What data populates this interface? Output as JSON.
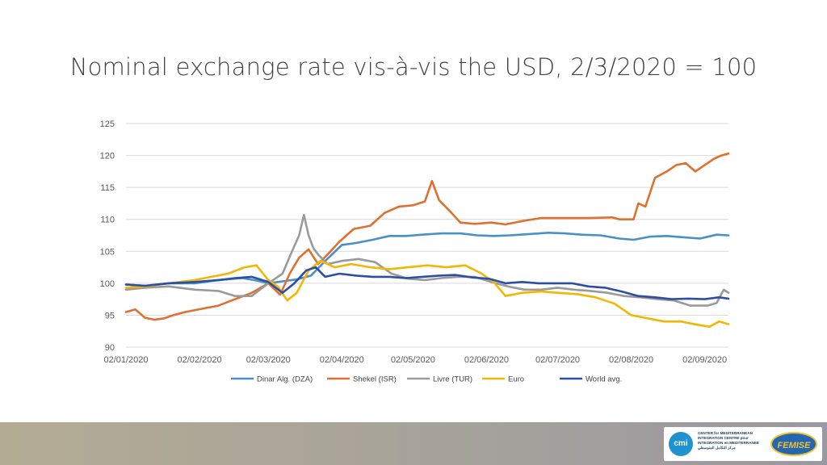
{
  "slide": {
    "title": "Nominal exchange rate vis-à-vis the USD, 2/3/2020 = 100"
  },
  "logos": {
    "cmi_badge": "cmi",
    "cmi_lines": [
      "CENTER for MEDITERRANEAN",
      "INTEGRATION CENTRE pour",
      "INTEGRATION en MEDITERRANEE",
      "مركز التكامل المتوسطي"
    ],
    "femise": "FEMISE"
  },
  "colors": {
    "background": "#ffffff",
    "grid": "#d9d9d9",
    "footer_band": "#a9a49a"
  },
  "chart_data": {
    "type": "line",
    "title": "",
    "xlabel": "",
    "ylabel": "",
    "ylim": [
      90,
      125
    ],
    "xlim": [
      "2020-01-02",
      "2020-09-12"
    ],
    "grid": true,
    "legend_position": "bottom",
    "y_ticks": [
      90,
      95,
      100,
      105,
      110,
      115,
      120,
      125
    ],
    "x_ticks": [
      "02/01/2020",
      "02/02/2020",
      "02/03/2020",
      "02/04/2020",
      "02/05/2020",
      "02/06/2020",
      "02/07/2020",
      "02/08/2020",
      "02/09/2020"
    ],
    "series": [
      {
        "name": "Dinar Alg. (DZA)",
        "color": "#4a90c8",
        "x": [
          "2020-01-02",
          "2020-01-10",
          "2020-01-20",
          "2020-01-31",
          "2020-02-10",
          "2020-02-20",
          "2020-02-25",
          "2020-03-02",
          "2020-03-08",
          "2020-03-14",
          "2020-03-20",
          "2020-03-26",
          "2020-04-02",
          "2020-04-08",
          "2020-04-15",
          "2020-04-22",
          "2020-04-29",
          "2020-05-06",
          "2020-05-14",
          "2020-05-22",
          "2020-05-29",
          "2020-06-05",
          "2020-06-12",
          "2020-06-20",
          "2020-06-28",
          "2020-07-05",
          "2020-07-12",
          "2020-07-20",
          "2020-07-28",
          "2020-08-03",
          "2020-08-10",
          "2020-08-17",
          "2020-08-24",
          "2020-08-31",
          "2020-09-07",
          "2020-09-12"
        ],
        "values": [
          99.8,
          99.6,
          100.0,
          100.0,
          100.5,
          100.8,
          100.5,
          100.0,
          100.3,
          100.6,
          101.2,
          103.5,
          106.0,
          106.3,
          106.8,
          107.4,
          107.4,
          107.6,
          107.8,
          107.8,
          107.5,
          107.4,
          107.5,
          107.7,
          107.9,
          107.8,
          107.6,
          107.5,
          107.0,
          106.8,
          107.3,
          107.4,
          107.2,
          107.0,
          107.6,
          107.5
        ]
      },
      {
        "name": "Shekel (ISR)",
        "color": "#e07031",
        "x": [
          "2020-01-02",
          "2020-01-06",
          "2020-01-10",
          "2020-01-14",
          "2020-01-18",
          "2020-01-22",
          "2020-01-27",
          "2020-02-03",
          "2020-02-10",
          "2020-02-17",
          "2020-02-24",
          "2020-03-02",
          "2020-03-07",
          "2020-03-11",
          "2020-03-15",
          "2020-03-19",
          "2020-03-23",
          "2020-03-27",
          "2020-04-01",
          "2020-04-07",
          "2020-04-14",
          "2020-04-20",
          "2020-04-26",
          "2020-05-02",
          "2020-05-07",
          "2020-05-10",
          "2020-05-13",
          "2020-05-17",
          "2020-05-22",
          "2020-05-28",
          "2020-06-04",
          "2020-06-10",
          "2020-06-18",
          "2020-06-25",
          "2020-07-05",
          "2020-07-15",
          "2020-07-25",
          "2020-07-28",
          "2020-07-31",
          "2020-08-03",
          "2020-08-05",
          "2020-08-08",
          "2020-08-12",
          "2020-08-17",
          "2020-08-21",
          "2020-08-25",
          "2020-08-29",
          "2020-09-02",
          "2020-09-06",
          "2020-09-09",
          "2020-09-12"
        ],
        "values": [
          95.5,
          95.9,
          94.6,
          94.3,
          94.5,
          95.0,
          95.5,
          96.0,
          96.5,
          97.5,
          98.5,
          100.0,
          98.2,
          101.5,
          104.0,
          105.3,
          103.0,
          104.5,
          106.5,
          108.5,
          109.0,
          111.0,
          112.0,
          112.2,
          112.8,
          116.0,
          113.0,
          111.5,
          109.5,
          109.3,
          109.5,
          109.2,
          109.8,
          110.2,
          110.2,
          110.2,
          110.3,
          110.0,
          110.0,
          110.0,
          112.5,
          112.0,
          116.5,
          117.5,
          118.5,
          118.8,
          117.5,
          118.5,
          119.5,
          120.0,
          120.3
        ]
      },
      {
        "name": "Livre (TUR)",
        "color": "#9a9a9a",
        "x": [
          "2020-01-02",
          "2020-01-10",
          "2020-01-20",
          "2020-01-31",
          "2020-02-10",
          "2020-02-17",
          "2020-02-24",
          "2020-03-02",
          "2020-03-08",
          "2020-03-12",
          "2020-03-15",
          "2020-03-17",
          "2020-03-19",
          "2020-03-21",
          "2020-03-23",
          "2020-03-27",
          "2020-04-02",
          "2020-04-09",
          "2020-04-16",
          "2020-04-23",
          "2020-04-30",
          "2020-05-07",
          "2020-05-14",
          "2020-05-21",
          "2020-05-28",
          "2020-06-04",
          "2020-06-11",
          "2020-06-18",
          "2020-06-25",
          "2020-07-02",
          "2020-07-09",
          "2020-07-16",
          "2020-07-23",
          "2020-07-30",
          "2020-08-06",
          "2020-08-13",
          "2020-08-20",
          "2020-08-27",
          "2020-09-03",
          "2020-09-07",
          "2020-09-10",
          "2020-09-12"
        ],
        "values": [
          99.0,
          99.3,
          99.5,
          99.0,
          98.8,
          98.0,
          98.0,
          100.0,
          101.5,
          105.0,
          107.5,
          110.7,
          107.5,
          105.5,
          104.5,
          103.0,
          103.5,
          103.8,
          103.3,
          101.5,
          100.7,
          100.5,
          100.8,
          101.0,
          101.0,
          100.2,
          99.5,
          99.0,
          99.0,
          99.3,
          99.0,
          98.8,
          98.5,
          98.0,
          97.8,
          97.5,
          97.3,
          96.5,
          96.5,
          96.9,
          99.0,
          98.5
        ]
      },
      {
        "name": "Euro",
        "color": "#f2b705",
        "x": [
          "2020-01-02",
          "2020-01-10",
          "2020-01-20",
          "2020-01-31",
          "2020-02-07",
          "2020-02-14",
          "2020-02-21",
          "2020-02-26",
          "2020-03-02",
          "2020-03-06",
          "2020-03-10",
          "2020-03-14",
          "2020-03-19",
          "2020-03-24",
          "2020-03-30",
          "2020-04-06",
          "2020-04-14",
          "2020-04-22",
          "2020-04-30",
          "2020-05-08",
          "2020-05-16",
          "2020-05-24",
          "2020-05-31",
          "2020-06-05",
          "2020-06-10",
          "2020-06-17",
          "2020-06-25",
          "2020-07-02",
          "2020-07-10",
          "2020-07-18",
          "2020-07-26",
          "2020-08-02",
          "2020-08-09",
          "2020-08-16",
          "2020-08-23",
          "2020-08-30",
          "2020-09-04",
          "2020-09-08",
          "2020-09-12"
        ],
        "values": [
          99.3,
          99.5,
          100.0,
          100.5,
          101.0,
          101.5,
          102.5,
          102.8,
          100.5,
          99.5,
          97.3,
          98.5,
          102.0,
          103.5,
          102.5,
          103.0,
          102.5,
          102.2,
          102.5,
          102.8,
          102.5,
          102.8,
          101.5,
          100.2,
          98.0,
          98.5,
          98.7,
          98.5,
          98.3,
          97.8,
          96.8,
          95.0,
          94.5,
          94.0,
          94.0,
          93.5,
          93.2,
          94.0,
          93.6
        ]
      },
      {
        "name": "World avg.",
        "color": "#2c4ea3",
        "x": [
          "2020-01-02",
          "2020-01-10",
          "2020-01-20",
          "2020-01-31",
          "2020-02-10",
          "2020-02-17",
          "2020-02-24",
          "2020-03-02",
          "2020-03-08",
          "2020-03-13",
          "2020-03-18",
          "2020-03-22",
          "2020-03-26",
          "2020-04-01",
          "2020-04-08",
          "2020-04-15",
          "2020-04-22",
          "2020-04-29",
          "2020-05-06",
          "2020-05-13",
          "2020-05-20",
          "2020-05-27",
          "2020-06-03",
          "2020-06-10",
          "2020-06-17",
          "2020-06-24",
          "2020-07-01",
          "2020-07-08",
          "2020-07-15",
          "2020-07-22",
          "2020-07-29",
          "2020-08-05",
          "2020-08-12",
          "2020-08-19",
          "2020-08-26",
          "2020-09-02",
          "2020-09-08",
          "2020-09-12"
        ],
        "values": [
          99.8,
          99.6,
          100.0,
          100.2,
          100.5,
          100.8,
          101.0,
          100.2,
          98.5,
          100.0,
          102.0,
          102.5,
          101.0,
          101.5,
          101.2,
          101.0,
          101.0,
          100.8,
          101.0,
          101.2,
          101.3,
          100.9,
          100.7,
          100.0,
          100.2,
          100.0,
          100.0,
          100.0,
          99.5,
          99.3,
          98.7,
          98.0,
          97.8,
          97.5,
          97.6,
          97.5,
          97.8,
          97.6
        ]
      }
    ]
  }
}
